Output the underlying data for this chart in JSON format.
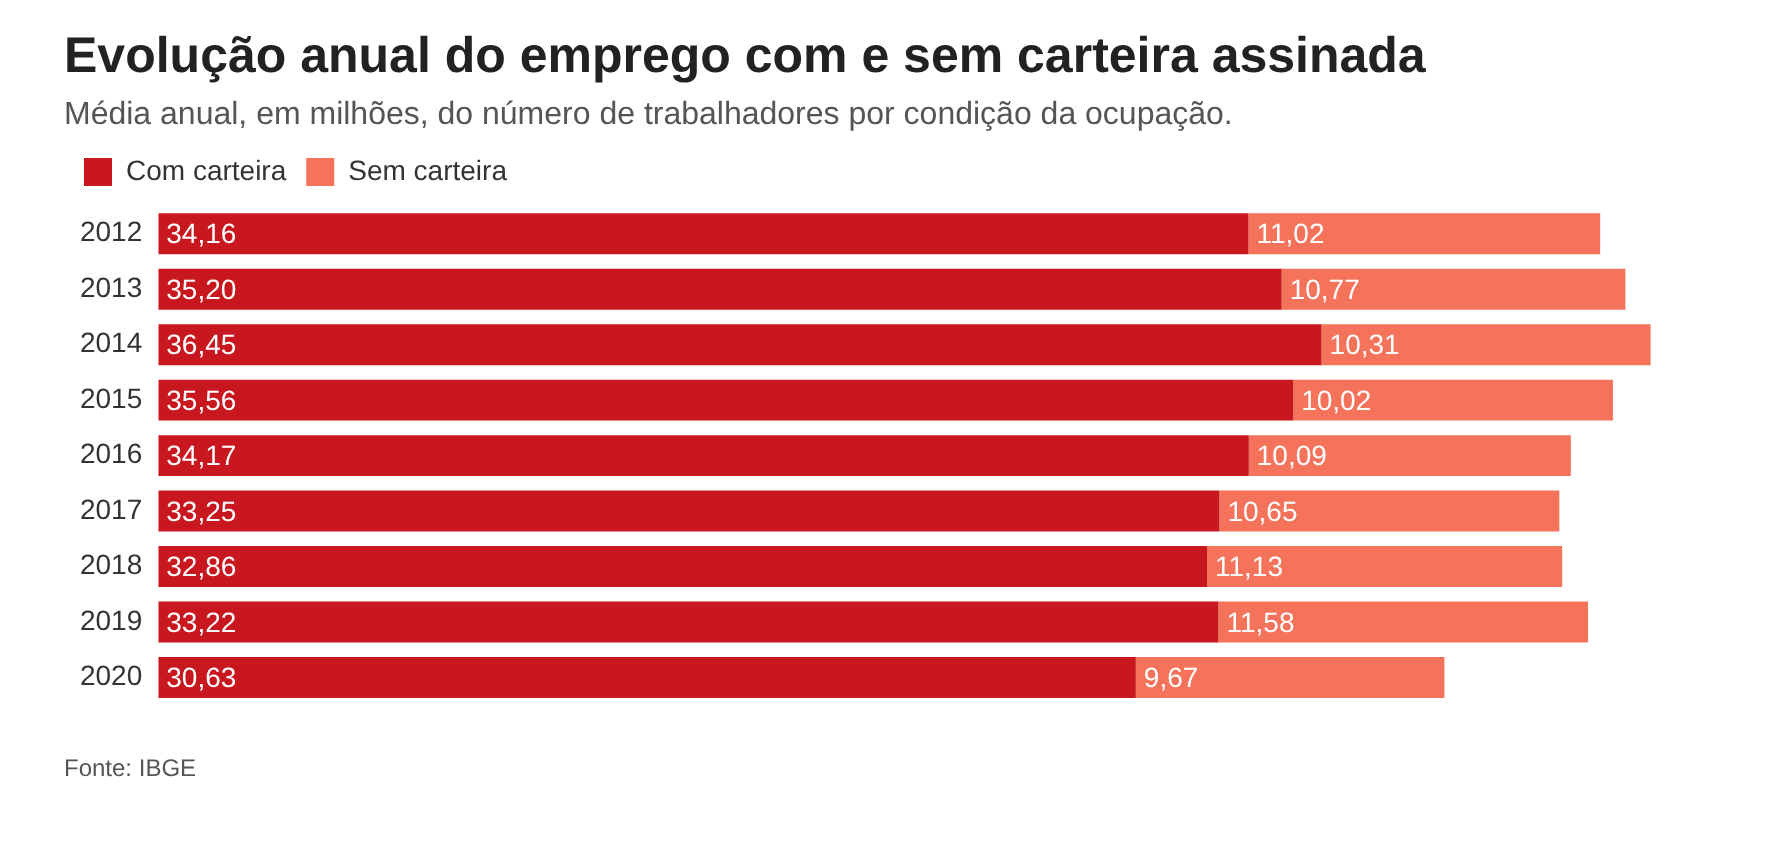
{
  "chart_data": {
    "type": "bar",
    "orientation": "horizontal",
    "stacked": true,
    "title": "Evolução anual do emprego com e sem carteira assinada",
    "subtitle": "Média anual, em milhões, do número de trabalhadores por condição da ocupação.",
    "categories": [
      "2012",
      "2013",
      "2014",
      "2015",
      "2016",
      "2017",
      "2018",
      "2019",
      "2020"
    ],
    "series": [
      {
        "name": "Com carteira",
        "color": "#c8171e",
        "values": [
          34.16,
          35.2,
          36.45,
          35.56,
          34.17,
          33.25,
          32.86,
          33.22,
          30.63
        ],
        "value_labels": [
          "34,16",
          "35,20",
          "36,45",
          "35,56",
          "34,17",
          "33,25",
          "32,86",
          "33,22",
          "30,63"
        ]
      },
      {
        "name": "Sem carteira",
        "color": "#f4735a",
        "values": [
          11.02,
          10.77,
          10.31,
          10.02,
          10.09,
          10.65,
          11.13,
          11.58,
          9.67
        ],
        "value_labels": [
          "11,02",
          "10,77",
          "10,31",
          "10,02",
          "10,09",
          "10,65",
          "11,13",
          "11,58",
          "9,67"
        ]
      }
    ],
    "legend": "top left",
    "tick_labels": "y",
    "grid": false,
    "annotations": [
      "Fonte: IBGE"
    ]
  }
}
